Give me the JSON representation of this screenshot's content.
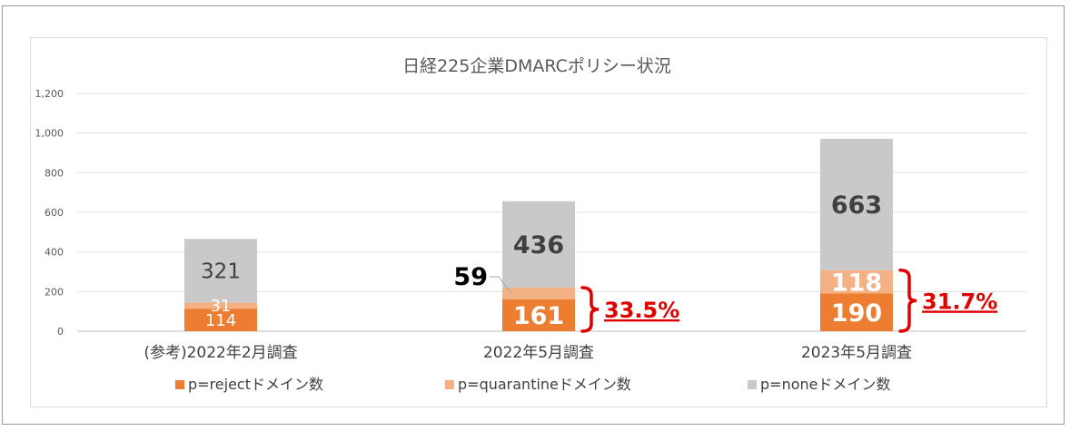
{
  "chart_data": {
    "type": "bar",
    "stacked": true,
    "title": "日経225企業DMARCポリシー状況",
    "categories": [
      "(参考)2022年2月調査",
      "2022年5月調査",
      "2023年5月調査"
    ],
    "series": [
      {
        "name": "p=rejectドメイン数",
        "color": "#ED7D31",
        "values": [
          114,
          161,
          190
        ]
      },
      {
        "name": "p=quarantineドメイン数",
        "color": "#F4B183",
        "values": [
          31,
          59,
          118
        ]
      },
      {
        "name": "p=noneドメイン数",
        "color": "#C9C9C9",
        "values": [
          321,
          436,
          663
        ]
      }
    ],
    "ylim": [
      0,
      1200
    ],
    "yticks": [
      "0",
      "200",
      "400",
      "600",
      "800",
      "1,000",
      "1,200"
    ],
    "ytick_values": [
      0,
      200,
      400,
      600,
      800,
      1000,
      1200
    ],
    "grid": true,
    "legend_position": "bottom",
    "annotations": [
      {
        "category": "2022年5月調査",
        "text": "33.5%",
        "color": "#E00000"
      },
      {
        "category": "2023年5月調査",
        "text": "31.7%",
        "color": "#E00000"
      }
    ]
  }
}
